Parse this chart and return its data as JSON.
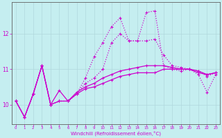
{
  "background_color": "#c5eef0",
  "grid_color": "#b0d8dc",
  "line_color": "#cc00cc",
  "xlabel": "Windchill (Refroidissement éolien,°C)",
  "x_hours": [
    0,
    1,
    2,
    3,
    4,
    5,
    6,
    7,
    8,
    9,
    10,
    11,
    12,
    13,
    14,
    15,
    16,
    17,
    18,
    19,
    20,
    21,
    22,
    23
  ],
  "line1_solid": [
    10.1,
    9.65,
    10.3,
    11.1,
    10.0,
    10.4,
    10.1,
    10.3,
    10.45,
    10.5,
    10.6,
    10.7,
    10.8,
    10.85,
    10.9,
    10.9,
    10.9,
    11.0,
    11.0,
    11.0,
    11.0,
    10.9,
    10.85,
    10.9
  ],
  "line2_solid": [
    10.1,
    9.65,
    10.3,
    11.1,
    10.0,
    10.1,
    10.1,
    10.35,
    10.5,
    10.6,
    10.75,
    10.85,
    10.95,
    11.0,
    11.05,
    11.1,
    11.1,
    11.1,
    11.05,
    11.0,
    11.0,
    10.95,
    10.85,
    10.9
  ],
  "line3_dotted": [
    10.1,
    9.65,
    10.3,
    11.1,
    10.0,
    10.1,
    10.1,
    10.3,
    10.6,
    10.75,
    11.0,
    11.75,
    12.0,
    11.8,
    11.8,
    11.8,
    11.85,
    11.4,
    11.1,
    11.05,
    11.0,
    10.95,
    10.8,
    10.9
  ],
  "line4_spike": [
    10.1,
    9.65,
    10.3,
    11.1,
    10.0,
    10.1,
    10.1,
    10.3,
    10.75,
    11.35,
    11.75,
    12.2,
    12.45,
    11.8,
    11.8,
    12.6,
    12.65,
    11.1,
    11.0,
    10.95,
    11.0,
    10.85,
    10.35,
    10.85
  ],
  "ylim": [
    9.45,
    12.9
  ],
  "yticks": [
    10,
    11,
    12
  ],
  "xlim": [
    -0.5,
    23.5
  ],
  "figsize": [
    3.2,
    2.0
  ],
  "dpi": 100
}
